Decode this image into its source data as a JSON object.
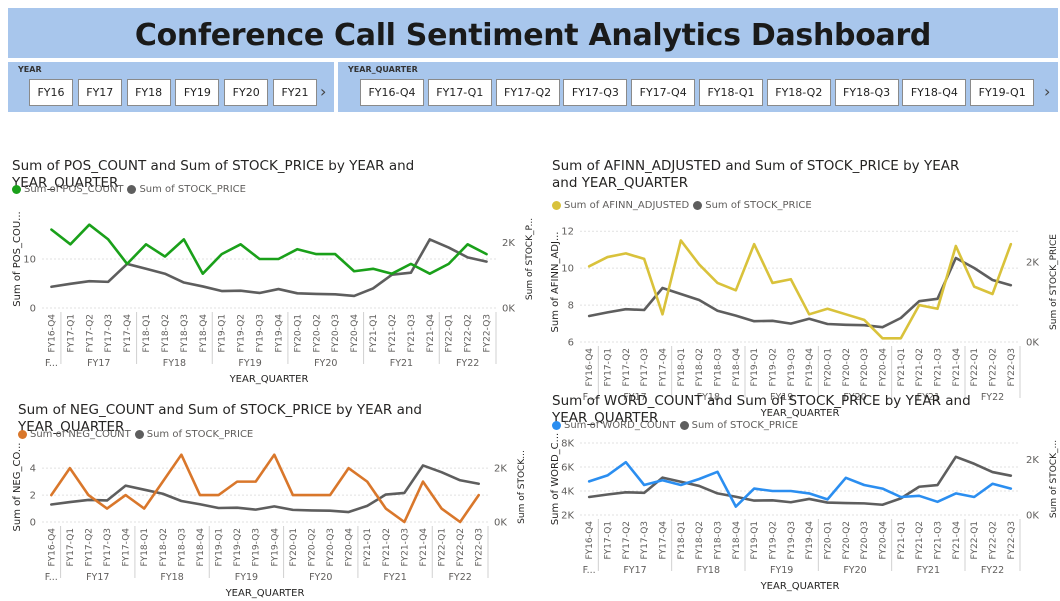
{
  "dashboard": {
    "title": "Conference Call Sentiment Analytics Dashboard"
  },
  "slicers": {
    "year": {
      "label": "YEAR",
      "options": [
        "FY16",
        "FY17",
        "FY18",
        "FY19",
        "FY20",
        "FY21"
      ]
    },
    "quarter": {
      "label": "YEAR_QUARTER",
      "options": [
        "FY16-Q4",
        "FY17-Q1",
        "FY17-Q2",
        "FY17-Q3",
        "FY17-Q4",
        "FY18-Q1",
        "FY18-Q2",
        "FY18-Q3",
        "FY18-Q4",
        "FY19-Q1"
      ]
    }
  },
  "colors": {
    "pos": "#1aa01a",
    "neg": "#d9772b",
    "afinn": "#d9c23b",
    "word": "#2b8ef0",
    "stock": "#5e5e5e"
  },
  "chart_data": [
    {
      "type": "line",
      "title": "Sum of POS_COUNT and Sum of STOCK_PRICE by YEAR and YEAR_QUARTER",
      "xlabel": "YEAR_QUARTER",
      "ylabel": "Sum of POS_COU...",
      "ylabel2": "Sum of STOCK_P...",
      "x": [
        "FY16-Q4",
        "FY17-Q1",
        "FY17-Q2",
        "FY17-Q3",
        "FY17-Q4",
        "FY18-Q1",
        "FY18-Q2",
        "FY18-Q3",
        "FY18-Q4",
        "FY19-Q1",
        "FY19-Q2",
        "FY19-Q3",
        "FY19-Q4",
        "FY20-Q1",
        "FY20-Q2",
        "FY20-Q3",
        "FY20-Q4",
        "FY21-Q1",
        "FY21-Q2",
        "FY21-Q3",
        "FY21-Q4",
        "FY22-Q1",
        "FY22-Q2",
        "FY22-Q3"
      ],
      "groups": [
        {
          "label": "F...",
          "span": 1
        },
        {
          "label": "FY17",
          "span": 4
        },
        {
          "label": "FY18",
          "span": 4
        },
        {
          "label": "FY19",
          "span": 4
        },
        {
          "label": "FY20",
          "span": 4
        },
        {
          "label": "FY21",
          "span": 4
        },
        {
          "label": "FY22",
          "span": 3
        }
      ],
      "y_ticks": [
        "0",
        "10"
      ],
      "y_tick_values": [
        0,
        10
      ],
      "ylim": [
        0,
        20
      ],
      "y2_ticks": [
        "0K",
        "2K"
      ],
      "y2_tick_values": [
        0,
        2000
      ],
      "y2lim": [
        0,
        3000
      ],
      "series": [
        {
          "name": "Sum of POS_COUNT",
          "axis": "left",
          "color_key": "pos",
          "values": [
            16,
            13,
            17,
            14,
            9,
            13,
            10.5,
            14,
            7,
            11,
            13,
            10,
            10,
            12,
            11,
            11,
            7.5,
            8,
            7,
            9,
            7,
            9,
            13,
            11
          ]
        },
        {
          "name": "Sum of STOCK_PRICE",
          "axis": "right",
          "color_key": "stock",
          "values": [
            650,
            740,
            820,
            800,
            1350,
            1200,
            1050,
            780,
            660,
            520,
            530,
            460,
            580,
            450,
            430,
            420,
            370,
            600,
            1020,
            1080,
            2100,
            1850,
            1550,
            1420
          ]
        }
      ]
    },
    {
      "type": "line",
      "title": "Sum of AFINN_ADJUSTED and Sum of STOCK_PRICE by YEAR and YEAR_QUARTER",
      "xlabel": "YEAR_QUARTER",
      "ylabel": "Sum of AFINN_ADJ...",
      "ylabel2": "Sum of STOCK_PRICE",
      "x": [
        "FY16-Q4",
        "FY17-Q1",
        "FY17-Q2",
        "FY17-Q3",
        "FY17-Q4",
        "FY18-Q1",
        "FY18-Q2",
        "FY18-Q3",
        "FY18-Q4",
        "FY19-Q1",
        "FY19-Q2",
        "FY19-Q3",
        "FY19-Q4",
        "FY20-Q1",
        "FY20-Q2",
        "FY20-Q3",
        "FY20-Q4",
        "FY21-Q1",
        "FY21-Q2",
        "FY21-Q3",
        "FY21-Q4",
        "FY22-Q1",
        "FY22-Q2",
        "FY22-Q3"
      ],
      "groups": [
        {
          "label": "F...",
          "span": 1
        },
        {
          "label": "FY17",
          "span": 4
        },
        {
          "label": "FY18",
          "span": 4
        },
        {
          "label": "FY19",
          "span": 4
        },
        {
          "label": "FY20",
          "span": 4
        },
        {
          "label": "FY21",
          "span": 4
        },
        {
          "label": "FY22",
          "span": 3
        }
      ],
      "y_ticks": [
        "6",
        "8",
        "10",
        "12"
      ],
      "y_tick_values": [
        6,
        8,
        10,
        12
      ],
      "ylim": [
        6,
        12.5
      ],
      "y2_ticks": [
        "0K",
        "2K"
      ],
      "y2_tick_values": [
        0,
        2000
      ],
      "y2lim": [
        0,
        3000
      ],
      "series": [
        {
          "name": "Sum of AFINN_ADJUSTED",
          "axis": "left",
          "color_key": "afinn",
          "values": [
            10.1,
            10.6,
            10.8,
            10.5,
            7.5,
            11.5,
            10.2,
            9.2,
            8.8,
            11.3,
            9.2,
            9.4,
            7.5,
            7.8,
            7.5,
            7.2,
            6.2,
            6.2,
            8,
            7.8,
            11.2,
            9,
            8.6,
            11.3
          ]
        },
        {
          "name": "Sum of STOCK_PRICE",
          "axis": "right",
          "color_key": "stock",
          "values": [
            650,
            740,
            820,
            800,
            1350,
            1200,
            1050,
            780,
            660,
            520,
            530,
            460,
            580,
            450,
            430,
            420,
            370,
            600,
            1020,
            1080,
            2100,
            1850,
            1550,
            1420
          ]
        }
      ]
    },
    {
      "type": "line",
      "title": "Sum of NEG_COUNT and Sum of STOCK_PRICE by YEAR and YEAR_QUARTER",
      "xlabel": "YEAR_QUARTER",
      "ylabel": "Sum of NEG_CO...",
      "ylabel2": "Sum of STOCK...",
      "x": [
        "FY16-Q4",
        "FY17-Q1",
        "FY17-Q2",
        "FY17-Q3",
        "FY17-Q4",
        "FY18-Q1",
        "FY18-Q2",
        "FY18-Q3",
        "FY18-Q4",
        "FY19-Q1",
        "FY19-Q2",
        "FY19-Q3",
        "FY19-Q4",
        "FY20-Q1",
        "FY20-Q2",
        "FY20-Q3",
        "FY20-Q4",
        "FY21-Q1",
        "FY21-Q2",
        "FY21-Q3",
        "FY21-Q4",
        "FY22-Q1",
        "FY22-Q2",
        "FY22-Q3"
      ],
      "groups": [
        {
          "label": "F...",
          "span": 1
        },
        {
          "label": "FY17",
          "span": 4
        },
        {
          "label": "FY18",
          "span": 4
        },
        {
          "label": "FY19",
          "span": 4
        },
        {
          "label": "FY20",
          "span": 4
        },
        {
          "label": "FY21",
          "span": 4
        },
        {
          "label": "FY22",
          "span": 3
        }
      ],
      "y_ticks": [
        "0",
        "2",
        "4"
      ],
      "y_tick_values": [
        0,
        2,
        4
      ],
      "ylim": [
        0,
        5.2
      ],
      "y2_ticks": [
        "0K",
        "2K"
      ],
      "y2_tick_values": [
        0,
        2000
      ],
      "y2lim": [
        0,
        2600
      ],
      "series": [
        {
          "name": "Sum of NEG_COUNT",
          "axis": "left",
          "color_key": "neg",
          "values": [
            2,
            4,
            2,
            1,
            2,
            1,
            3,
            5,
            2,
            2,
            3,
            3,
            5,
            2,
            2,
            2,
            4,
            3,
            1,
            0,
            3,
            1,
            0,
            2
          ]
        },
        {
          "name": "Sum of STOCK_PRICE",
          "axis": "right",
          "color_key": "stock",
          "values": [
            650,
            740,
            820,
            800,
            1350,
            1200,
            1050,
            780,
            660,
            520,
            530,
            460,
            580,
            450,
            430,
            420,
            370,
            600,
            1020,
            1080,
            2100,
            1850,
            1550,
            1420
          ]
        }
      ]
    },
    {
      "type": "line",
      "title": "Sum of WORD_COUNT and Sum of STOCK_PRICE by YEAR and YEAR_QUARTER",
      "xlabel": "YEAR_QUARTER",
      "ylabel": "Sum of WORD_C...",
      "ylabel2": "Sum of STOCK_...",
      "x": [
        "FY16-Q4",
        "FY17-Q1",
        "FY17-Q2",
        "FY17-Q3",
        "FY17-Q4",
        "FY18-Q1",
        "FY18-Q2",
        "FY18-Q3",
        "FY18-Q4",
        "FY19-Q1",
        "FY19-Q2",
        "FY19-Q3",
        "FY19-Q4",
        "FY20-Q1",
        "FY20-Q2",
        "FY20-Q3",
        "FY20-Q4",
        "FY21-Q1",
        "FY21-Q2",
        "FY21-Q3",
        "FY21-Q4",
        "FY22-Q1",
        "FY22-Q2",
        "FY22-Q3"
      ],
      "groups": [
        {
          "label": "F...",
          "span": 1
        },
        {
          "label": "FY17",
          "span": 4
        },
        {
          "label": "FY18",
          "span": 4
        },
        {
          "label": "FY19",
          "span": 4
        },
        {
          "label": "FY20",
          "span": 4
        },
        {
          "label": "FY21",
          "span": 4
        },
        {
          "label": "FY22",
          "span": 3
        }
      ],
      "y_ticks": [
        "2K",
        "4K",
        "6K",
        "8K"
      ],
      "y_tick_values": [
        2000,
        4000,
        6000,
        8000
      ],
      "ylim": [
        2000,
        8000
      ],
      "y2_ticks": [
        "0K",
        "2K"
      ],
      "y2_tick_values": [
        0,
        2000
      ],
      "y2lim": [
        0,
        2600
      ],
      "series": [
        {
          "name": "Sum of WORD_COUNT",
          "axis": "left",
          "color_key": "word",
          "values": [
            4800,
            5300,
            6400,
            4500,
            4900,
            4500,
            5000,
            5600,
            2700,
            4200,
            4000,
            4000,
            3800,
            3300,
            5100,
            4500,
            4200,
            3500,
            3600,
            3100,
            3800,
            3500,
            4600,
            4200
          ]
        },
        {
          "name": "Sum of STOCK_PRICE",
          "axis": "right",
          "color_key": "stock",
          "values": [
            650,
            740,
            820,
            800,
            1350,
            1200,
            1050,
            780,
            660,
            520,
            530,
            460,
            580,
            450,
            430,
            420,
            370,
            600,
            1020,
            1080,
            2100,
            1850,
            1550,
            1420
          ]
        }
      ]
    }
  ]
}
